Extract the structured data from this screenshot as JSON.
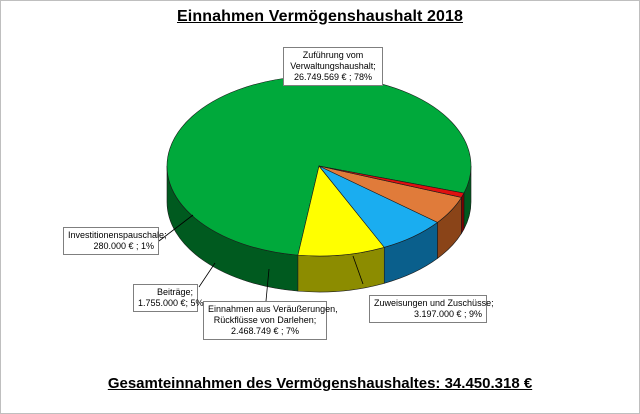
{
  "chart_data": {
    "type": "pie",
    "title": "Einnahmen Vermögenshaushalt 2018",
    "footer": "Gesamteinnahmen des Vermögenshaushaltes: 34.450.318 €",
    "slices": [
      {
        "label_lines": [
          "Zuführung vom",
          "Verwaltungshaushalt;",
          "26.749.569 € ; 78%"
        ],
        "value": 26749569,
        "percent": 78,
        "color": "#00a93b",
        "side": "#005a1f"
      },
      {
        "label_lines": [
          "Zuweisungen und Zuschüsse;",
          "3.197.000 € ; 9%"
        ],
        "value": 3197000,
        "percent": 9,
        "color": "#ffff00",
        "side": "#8c8c00"
      },
      {
        "label_lines": [
          "Einnahmen aus Veräußerungen,",
          "Rückflüsse von Darlehen;",
          "2.468.749 € ; 7%"
        ],
        "value": 2468749,
        "percent": 7,
        "color": "#1aadf0",
        "side": "#0a5f8c"
      },
      {
        "label_lines": [
          "Beiträge;",
          "1.755.000 €; 5%"
        ],
        "value": 1755000,
        "percent": 5,
        "color": "#e07b3a",
        "side": "#8a4418"
      },
      {
        "label_lines": [
          "Investitionenspauschale;",
          "280.000 € ; 1%"
        ],
        "value": 280000,
        "percent": 1,
        "color": "#e01010",
        "side": "#7a0000"
      }
    ]
  }
}
